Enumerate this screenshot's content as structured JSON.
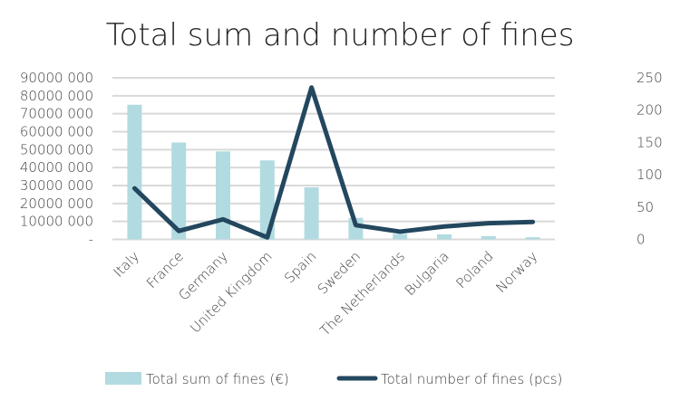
{
  "chart_data": {
    "type": "bar+line",
    "title": "Total sum and number of fines",
    "categories": [
      "Italy",
      "France",
      "Germany",
      "United Kingdom",
      "Spain",
      "Sweden",
      "The Netherlands",
      "Bulgaria",
      "Poland",
      "Norway"
    ],
    "series": [
      {
        "name": "Total sum of fines (€)",
        "type": "bar",
        "axis": "left",
        "color": "#b1dbe0",
        "values": [
          75000000,
          54000000,
          49000000,
          44000000,
          29000000,
          12000000,
          3000000,
          2800000,
          1800000,
          1200000
        ]
      },
      {
        "name": "Total number of fines (pcs)",
        "type": "line",
        "axis": "right",
        "color": "#23475e",
        "values": [
          79,
          13,
          31,
          3,
          235,
          22,
          12,
          20,
          25,
          27
        ]
      }
    ],
    "left_axis": {
      "ylim": [
        0,
        90000000
      ],
      "tick_labels": [
        "-",
        "10000 000",
        "20000 000",
        "30000 000",
        "40000 000",
        "50000 000",
        "60000 000",
        "70000 000",
        "80000 000",
        "90000 000"
      ]
    },
    "right_axis": {
      "ylim": [
        0,
        250
      ],
      "tick_labels": [
        "0",
        "50",
        "100",
        "150",
        "200",
        "250"
      ]
    },
    "grid": true,
    "legend": "bottom"
  }
}
